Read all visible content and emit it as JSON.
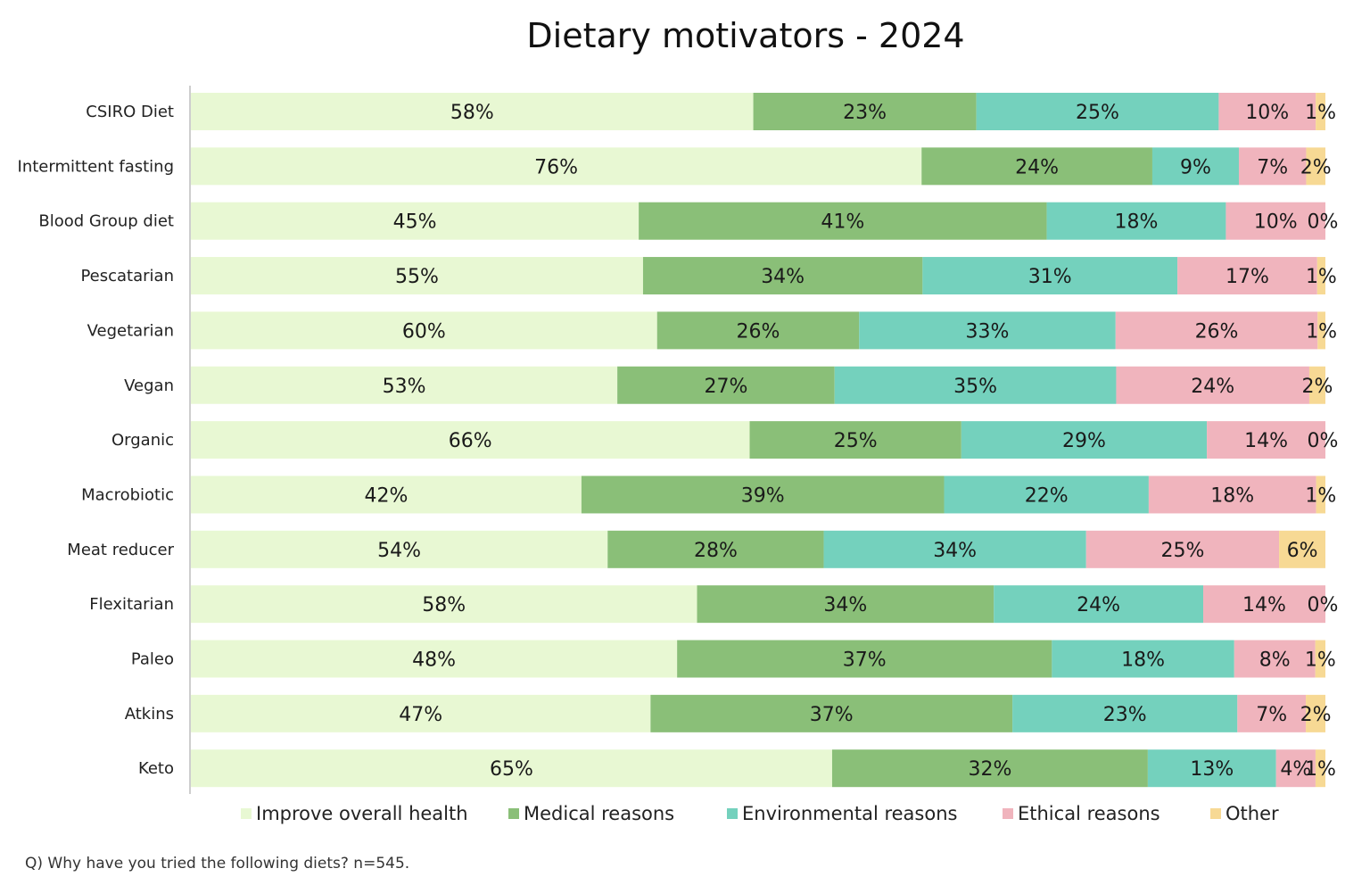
{
  "chart_data": {
    "type": "bar",
    "orientation": "horizontal",
    "stacked": true,
    "title": "Dietary motivators - 2024",
    "categories": [
      "CSIRO Diet",
      "Intermittent fasting",
      "Blood Group diet",
      "Pescatarian",
      "Vegetarian",
      "Vegan",
      "Organic",
      "Macrobiotic",
      "Meat reducer",
      "Flexitarian",
      "Paleo",
      "Atkins",
      "Keto"
    ],
    "series": [
      {
        "name": "Improve overall health",
        "color": "#e8f8d3",
        "values": [
          58,
          76,
          45,
          55,
          60,
          53,
          66,
          42,
          54,
          58,
          48,
          47,
          65
        ]
      },
      {
        "name": "Medical reasons",
        "color": "#8abf78",
        "values": [
          23,
          24,
          41,
          34,
          26,
          27,
          25,
          39,
          28,
          34,
          37,
          37,
          32
        ]
      },
      {
        "name": "Environmental reasons",
        "color": "#74d1bd",
        "values": [
          25,
          9,
          18,
          31,
          33,
          35,
          29,
          22,
          34,
          24,
          18,
          23,
          13
        ]
      },
      {
        "name": "Ethical reasons",
        "color": "#f0b4bd",
        "values": [
          10,
          7,
          10,
          17,
          26,
          24,
          14,
          18,
          25,
          14,
          8,
          7,
          4
        ]
      },
      {
        "name": "Other",
        "color": "#f7d994",
        "values": [
          1,
          2,
          0,
          1,
          1,
          2,
          0,
          1,
          6,
          0,
          1,
          2,
          1
        ]
      }
    ],
    "value_suffix": "%",
    "legend_position": "bottom",
    "grid": false
  },
  "footnote": "Q) Why have you tried the following diets? n=545."
}
